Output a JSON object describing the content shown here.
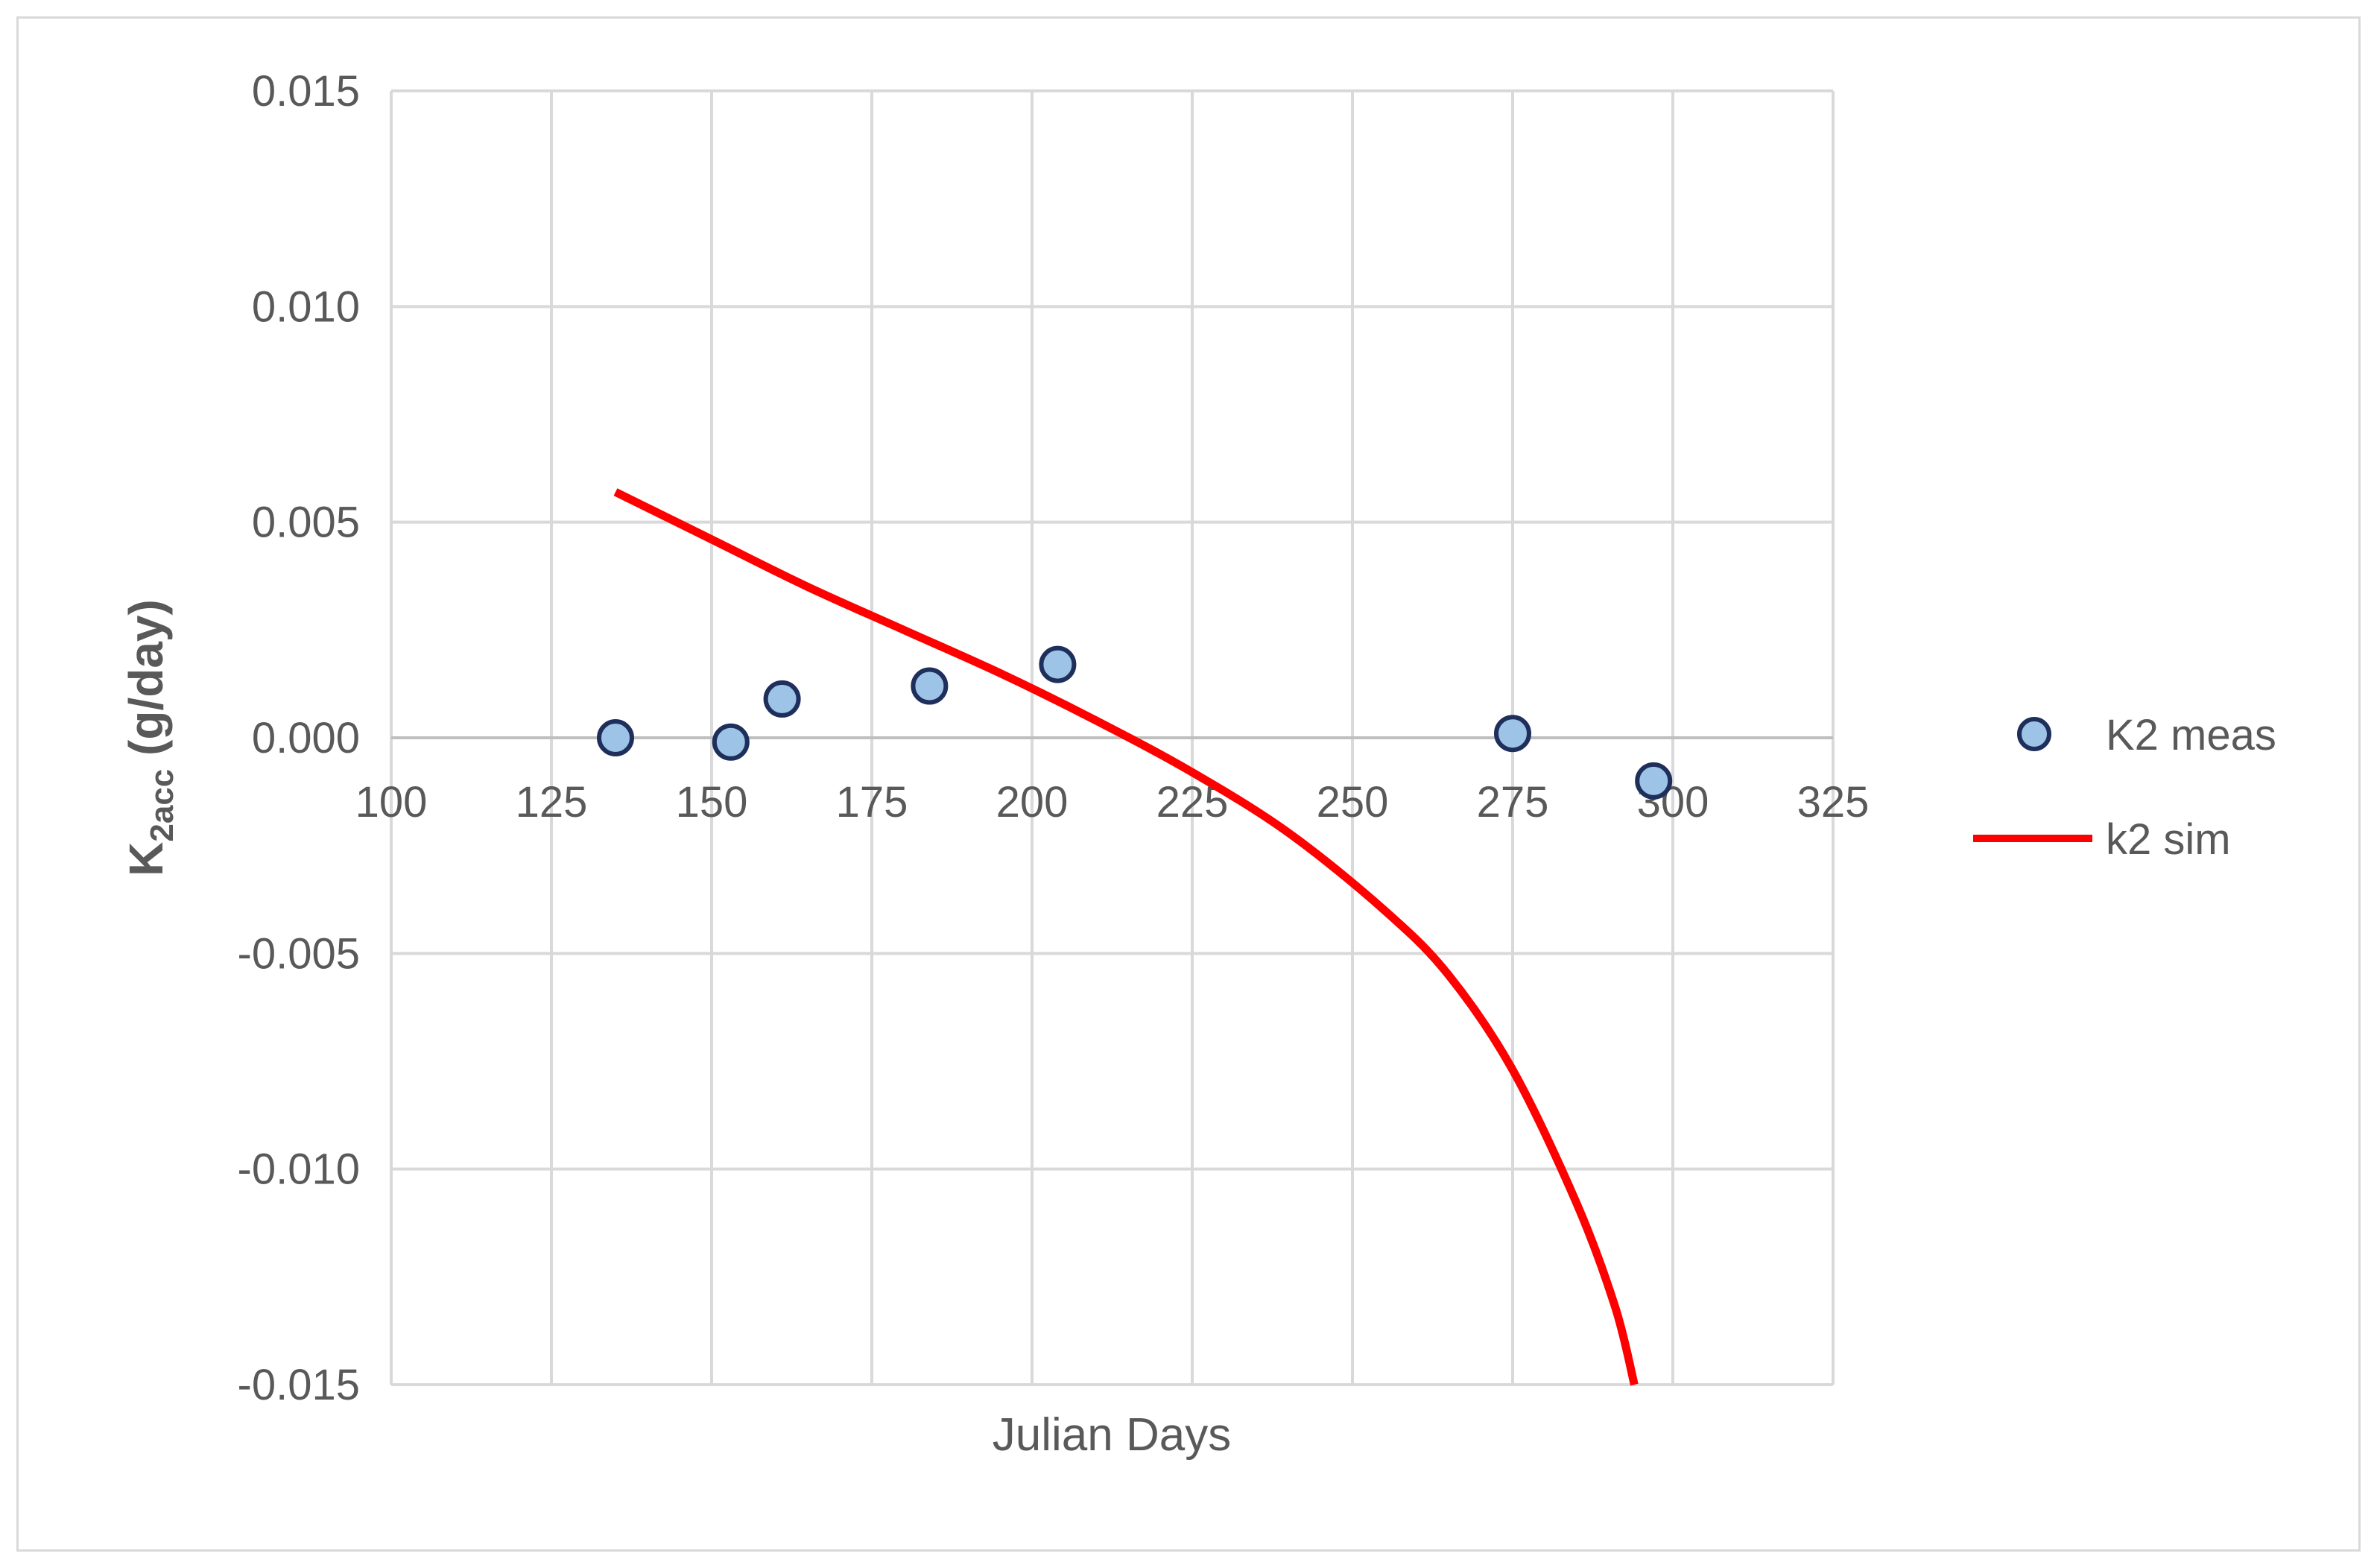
{
  "chart_data": {
    "type": "scatter",
    "xlabel": "Julian Days",
    "ylabel": {
      "main": "K",
      "sub": "2acc",
      "rest": " (g/day)"
    },
    "xlim": [
      100,
      325
    ],
    "ylim": [
      -0.015,
      0.015
    ],
    "x_ticks": [
      "100",
      "125",
      "150",
      "175",
      "200",
      "225",
      "250",
      "275",
      "300",
      "325"
    ],
    "y_ticks": [
      "0.015",
      "0.010",
      "0.005",
      "0.000",
      "-0.005",
      "-0.010",
      "-0.015"
    ],
    "grid": true,
    "legend_position": "right",
    "series": [
      {
        "name": "K2 meas",
        "kind": "markers",
        "color": "#9dc3e6",
        "edge_color": "#1f2f5c",
        "points": [
          {
            "x": 135,
            "y": 0.0
          },
          {
            "x": 153,
            "y": -0.0001
          },
          {
            "x": 161,
            "y": 0.0009
          },
          {
            "x": 184,
            "y": 0.0012
          },
          {
            "x": 204,
            "y": 0.0017
          },
          {
            "x": 275,
            "y": 0.0001
          },
          {
            "x": 297,
            "y": -0.001
          }
        ]
      },
      {
        "name": "k2 sim",
        "kind": "line",
        "color": "#ff0000",
        "points": [
          {
            "x": 135,
            "y": 0.0057
          },
          {
            "x": 150,
            "y": 0.0046
          },
          {
            "x": 165,
            "y": 0.0035
          },
          {
            "x": 180,
            "y": 0.0025
          },
          {
            "x": 195,
            "y": 0.0015
          },
          {
            "x": 210,
            "y": 0.0004
          },
          {
            "x": 225,
            "y": -0.0008
          },
          {
            "x": 240,
            "y": -0.0022
          },
          {
            "x": 255,
            "y": -0.004
          },
          {
            "x": 265,
            "y": -0.0055
          },
          {
            "x": 275,
            "y": -0.0077
          },
          {
            "x": 285,
            "y": -0.0108
          },
          {
            "x": 291,
            "y": -0.0132
          },
          {
            "x": 294,
            "y": -0.015
          }
        ]
      }
    ]
  }
}
